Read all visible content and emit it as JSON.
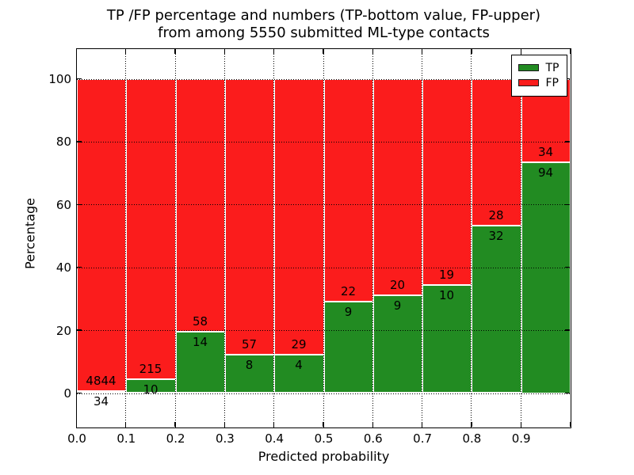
{
  "figure": {
    "title_line1": "TP /FP percentage and numbers (TP-bottom value, FP-upper)",
    "title_line2": "from among 5550 submitted ML-type contacts"
  },
  "chart_data": {
    "type": "bar",
    "stacked": true,
    "title": "TP /FP percentage and numbers (TP-bottom value, FP-upper) from among 5550 submitted ML-type contacts",
    "xlabel": "Predicted probability",
    "ylabel": "Percentage",
    "total_submitted": 5550,
    "categories": [
      "0.0-0.1",
      "0.1-0.2",
      "0.2-0.3",
      "0.3-0.4",
      "0.4-0.5",
      "0.5-0.6",
      "0.6-0.7",
      "0.7-0.8",
      "0.8-0.9",
      "0.9-1.0"
    ],
    "series": [
      {
        "name": "TP",
        "color": "#228b22",
        "counts": [
          34,
          10,
          14,
          8,
          4,
          9,
          9,
          10,
          32,
          94
        ]
      },
      {
        "name": "FP",
        "color": "#fb1c1c",
        "counts": [
          4844,
          215,
          58,
          57,
          29,
          22,
          20,
          19,
          28,
          34
        ]
      }
    ],
    "percent_tp": [
      0.7,
      4.4,
      19.4,
      12.3,
      12.1,
      29.0,
      31.0,
      34.5,
      53.3,
      73.4
    ],
    "bar_total_percent": 100,
    "xticks": [
      "0.0",
      "0.1",
      "0.2",
      "0.3",
      "0.4",
      "0.5",
      "0.6",
      "0.7",
      "0.8",
      "0.9"
    ],
    "yticks": [
      0,
      20,
      40,
      60,
      80,
      100
    ],
    "xlim": [
      0.0,
      1.0
    ],
    "ylim": [
      -10.8,
      109.6
    ],
    "grid": "dotted",
    "legend": {
      "position": "upper right",
      "entries": [
        {
          "label": "TP",
          "color": "#228b22"
        },
        {
          "label": "FP",
          "color": "#fb1c1c"
        }
      ]
    }
  },
  "colors": {
    "tp": "#228b22",
    "fp": "#fb1c1c",
    "background": "#ffffff",
    "text": "#000000"
  }
}
